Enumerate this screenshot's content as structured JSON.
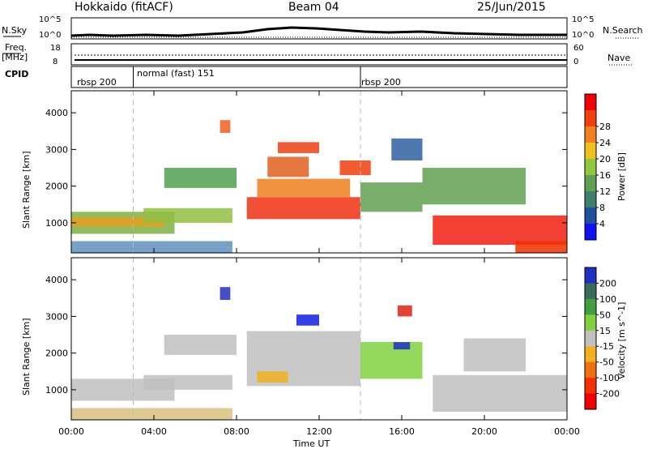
{
  "header": {
    "station": "Hokkaido (fitACF)",
    "beam": "Beam 04",
    "date": "25/Jun/2015"
  },
  "noise_panel": {
    "left_label": "N.Sky",
    "right_label": "N.Search",
    "left_ticks": [
      "10^5",
      "10^0"
    ],
    "right_ticks": [
      "10^5",
      "10^0"
    ]
  },
  "freq_panel": {
    "left_label_1": "Freq.",
    "left_label_2": "[MHz]",
    "right_label": "Nave",
    "left_ticks": [
      "18",
      "8"
    ],
    "right_ticks": [
      "60",
      "0"
    ]
  },
  "cpid_panel": {
    "label": "CPID",
    "segments": [
      {
        "name": "rbsp 200",
        "start_hour": 0
      },
      {
        "name": "normal (fast) 151",
        "start_hour": 3.0
      },
      {
        "name": "rbsp 200",
        "start_hour": 14.0
      }
    ]
  },
  "time_axis": {
    "label": "Time UT",
    "ticks": [
      "00:00",
      "04:00",
      "08:00",
      "12:00",
      "16:00",
      "20:00",
      "00:00"
    ],
    "tick_hours": [
      0,
      4,
      8,
      12,
      16,
      20,
      24
    ]
  },
  "chart_data": [
    {
      "type": "heatmap",
      "name": "power",
      "ylabel": "Slant Range [km]",
      "yticks": [
        1000,
        2000,
        3000,
        4000
      ],
      "ylim": [
        180,
        4600
      ],
      "xlim": [
        0,
        24
      ],
      "colorbar_label": "Power [dB]",
      "colorbar_ticks": [
        4,
        8,
        12,
        16,
        20,
        24,
        28
      ],
      "colorbar_colors": [
        "#1010f0",
        "#2050a0",
        "#3f7f6f",
        "#60a050",
        "#90c840",
        "#f0c020",
        "#f08020",
        "#f04010",
        "#f00000"
      ],
      "regions": [
        {
          "t0": 0.0,
          "t1": 5.0,
          "r0": 700,
          "r1": 1300,
          "color": "#80b040"
        },
        {
          "t0": 0.0,
          "t1": 4.5,
          "r0": 900,
          "r1": 1150,
          "color": "#e8a020"
        },
        {
          "t0": 0.0,
          "t1": 7.8,
          "r0": 180,
          "r1": 500,
          "color": "#6090c0"
        },
        {
          "t0": 3.5,
          "t1": 7.8,
          "r0": 1000,
          "r1": 1400,
          "color": "#90c040"
        },
        {
          "t0": 4.5,
          "t1": 8.0,
          "r0": 1950,
          "r1": 2500,
          "color": "#50a050"
        },
        {
          "t0": 7.2,
          "t1": 7.7,
          "r0": 3450,
          "r1": 3800,
          "color": "#f06020"
        },
        {
          "t0": 8.5,
          "t1": 14.0,
          "r0": 1100,
          "r1": 1700,
          "color": "#f03010"
        },
        {
          "t0": 9.0,
          "t1": 13.5,
          "r0": 1700,
          "r1": 2200,
          "color": "#f08020"
        },
        {
          "t0": 9.5,
          "t1": 11.5,
          "r0": 2250,
          "r1": 2800,
          "color": "#e06020"
        },
        {
          "t0": 10.0,
          "t1": 12.0,
          "r0": 2900,
          "r1": 3200,
          "color": "#f04010"
        },
        {
          "t0": 13.0,
          "t1": 14.5,
          "r0": 2300,
          "r1": 2700,
          "color": "#f04010"
        },
        {
          "t0": 14.0,
          "t1": 17.0,
          "r0": 1300,
          "r1": 2100,
          "color": "#60a050"
        },
        {
          "t0": 15.5,
          "t1": 17.0,
          "r0": 2700,
          "r1": 3300,
          "color": "#3060a0"
        },
        {
          "t0": 17.0,
          "t1": 22.0,
          "r0": 1500,
          "r1": 2500,
          "color": "#60a050"
        },
        {
          "t0": 17.5,
          "t1": 24.0,
          "r0": 400,
          "r1": 1200,
          "color": "#f02010"
        },
        {
          "t0": 21.5,
          "t1": 24.0,
          "r0": 180,
          "r1": 500,
          "color": "#f03000"
        }
      ]
    },
    {
      "type": "heatmap",
      "name": "velocity",
      "ylabel": "Slant Range [km]",
      "yticks": [
        1000,
        2000,
        3000,
        4000
      ],
      "ylim": [
        180,
        4600
      ],
      "xlim": [
        0,
        24
      ],
      "colorbar_label": "Velocity [m s^-1]",
      "colorbar_ticks": [
        200,
        100,
        50,
        15,
        -15,
        -50,
        -100,
        -200
      ],
      "colorbar_colors": [
        "#2030c0",
        "#3a6a5a",
        "#40a040",
        "#80d040",
        "#c0c0c0",
        "#f0b020",
        "#f07010",
        "#f03000",
        "#f00000"
      ],
      "regions": [
        {
          "t0": 0.0,
          "t1": 5.0,
          "r0": 700,
          "r1": 1300,
          "color": "#c0c0c0"
        },
        {
          "t0": 0.0,
          "t1": 7.8,
          "r0": 180,
          "r1": 500,
          "color": "#d8c080"
        },
        {
          "t0": 3.5,
          "t1": 7.8,
          "r0": 1000,
          "r1": 1400,
          "color": "#c0c0c0"
        },
        {
          "t0": 4.5,
          "t1": 8.0,
          "r0": 1950,
          "r1": 2500,
          "color": "#c0c0c0"
        },
        {
          "t0": 7.2,
          "t1": 7.7,
          "r0": 3450,
          "r1": 3800,
          "color": "#2030c0"
        },
        {
          "t0": 8.5,
          "t1": 14.0,
          "r0": 1100,
          "r1": 2600,
          "color": "#c0c0c0"
        },
        {
          "t0": 10.9,
          "t1": 12.0,
          "r0": 2750,
          "r1": 3050,
          "color": "#1020e0"
        },
        {
          "t0": 9.0,
          "t1": 10.5,
          "r0": 1200,
          "r1": 1500,
          "color": "#f0b020"
        },
        {
          "t0": 14.0,
          "t1": 17.0,
          "r0": 1300,
          "r1": 2300,
          "color": "#80d040"
        },
        {
          "t0": 15.6,
          "t1": 16.4,
          "r0": 2100,
          "r1": 2300,
          "color": "#2030c0"
        },
        {
          "t0": 15.8,
          "t1": 16.5,
          "r0": 3000,
          "r1": 3300,
          "color": "#e02010"
        },
        {
          "t0": 17.5,
          "t1": 24.0,
          "r0": 400,
          "r1": 1400,
          "color": "#c0c0c0"
        },
        {
          "t0": 19.0,
          "t1": 22.0,
          "r0": 1500,
          "r1": 2400,
          "color": "#c0c0c0"
        }
      ]
    }
  ]
}
